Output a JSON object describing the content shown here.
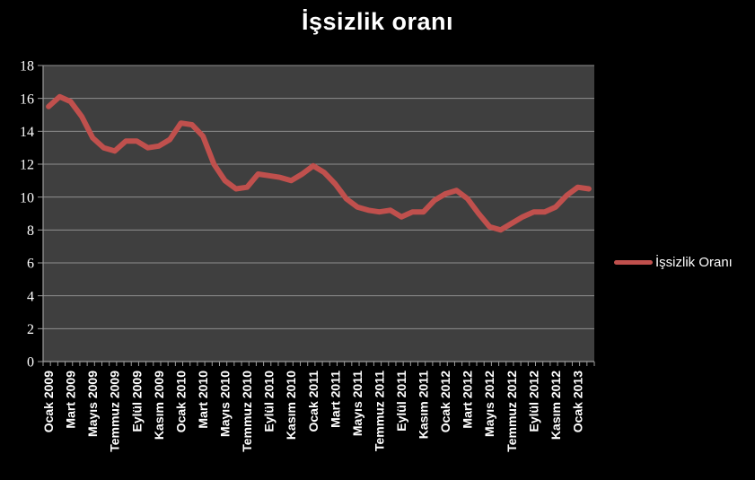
{
  "chart": {
    "title": "İşsizlik oranı",
    "legend": {
      "label": "İşsizlik Oranı"
    }
  },
  "chart_data": {
    "type": "line",
    "title": "İşsizlik oranı",
    "x": [
      "Ocak 2009",
      "Şubat 2009",
      "Mart 2009",
      "Nisan 2009",
      "Mayıs 2009",
      "Haziran 2009",
      "Temmuz 2009",
      "Ağustos 2009",
      "Eylül 2009",
      "Ekim 2009",
      "Kasım 2009",
      "Aralık 2009",
      "Ocak 2010",
      "Şubat 2010",
      "Mart 2010",
      "Nisan 2010",
      "Mayıs 2010",
      "Haziran 2010",
      "Temmuz 2010",
      "Ağustos 2010",
      "Eylül 2010",
      "Ekim 2010",
      "Kasım 2010",
      "Aralık 2010",
      "Ocak 2011",
      "Şubat 2011",
      "Mart 2011",
      "Nisan 2011",
      "Mayıs 2011",
      "Haziran 2011",
      "Temmuz 2011",
      "Ağustos 2011",
      "Eylül 2011",
      "Ekim 2011",
      "Kasım 2011",
      "Aralık 2011",
      "Ocak 2012",
      "Şubat 2012",
      "Mart 2012",
      "Nisan 2012",
      "Mayıs 2012",
      "Haziran 2012",
      "Temmuz 2012",
      "Ağustos 2012",
      "Eylül 2012",
      "Ekim 2012",
      "Kasım 2012",
      "Aralık 2012",
      "Ocak 2013",
      "Şubat 2013"
    ],
    "x_axis_visible_labels": [
      "Ocak 2009",
      "Mart 2009",
      "Mayıs 2009",
      "Temmuz 2009",
      "Eylül 2009",
      "Kasım 2009",
      "Ocak 2010",
      "Mart 2010",
      "Mayıs 2010",
      "Temmuz 2010",
      "Eylül 2010",
      "Kasım 2010",
      "Ocak 2011",
      "Mart 2011",
      "Mayıs 2011",
      "Temmuz 2011",
      "Eylül 2011",
      "Kasım 2011",
      "Ocak 2012",
      "Mart 2012",
      "Mayıs 2012",
      "Temmuz 2012",
      "Eylül 2012",
      "Kasım 2012",
      "Ocak 2013"
    ],
    "series": [
      {
        "name": "İşsizlik Oranı",
        "color": "#C0504D",
        "values": [
          15.5,
          16.1,
          15.8,
          14.9,
          13.6,
          13.0,
          12.8,
          13.4,
          13.4,
          13.0,
          13.1,
          13.5,
          14.5,
          14.4,
          13.7,
          12.0,
          11.0,
          10.5,
          10.6,
          11.4,
          11.3,
          11.2,
          11.0,
          11.4,
          11.9,
          11.5,
          10.8,
          9.9,
          9.4,
          9.2,
          9.1,
          9.2,
          8.8,
          9.1,
          9.1,
          9.8,
          10.2,
          10.4,
          9.9,
          9.0,
          8.2,
          8.0,
          8.4,
          8.8,
          9.1,
          9.1,
          9.4,
          10.1,
          10.6,
          10.5
        ]
      }
    ],
    "ylim": [
      0,
      18
    ],
    "y_ticks": [
      0,
      2,
      4,
      6,
      8,
      10,
      12,
      14,
      16,
      18
    ],
    "grid": "horizontal",
    "legend_position": "right",
    "colors": {
      "background": "#000000",
      "plot_background": "#3F3F3F",
      "gridline": "#8F8F8F",
      "axis": "#9B9B9B",
      "text": "#FFFFFF",
      "series": "#C0504D"
    }
  }
}
